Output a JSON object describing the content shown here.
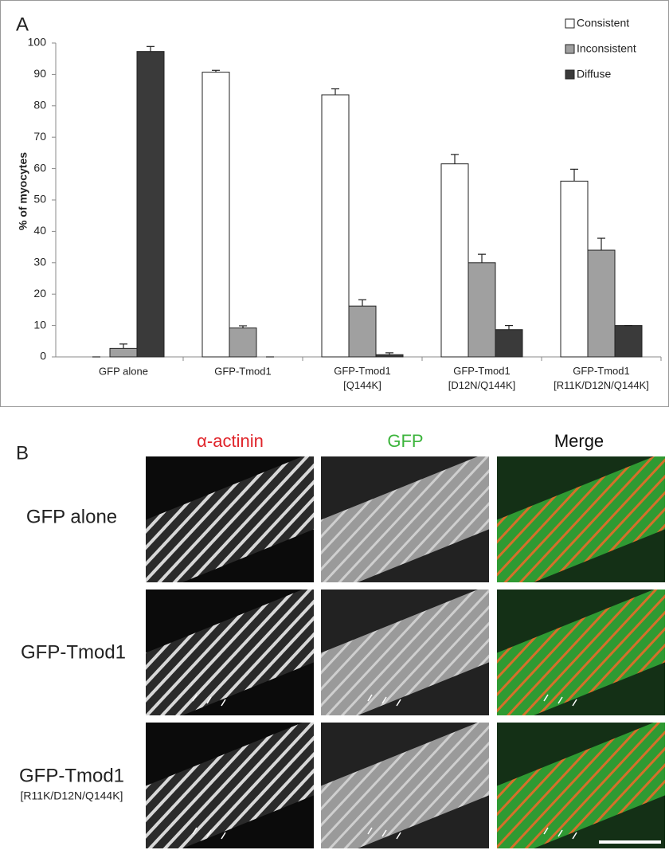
{
  "panel_a": {
    "label": "A"
  },
  "chart_data": {
    "type": "bar",
    "ylabel": "% of myocytes",
    "categories": [
      "GFP alone",
      "GFP-Tmod1",
      "GFP-Tmod1\n[Q144K]",
      "GFP-Tmod1\n[D12N/Q144K]",
      "GFP-Tmod1\n[R11K/D12N/Q144K]"
    ],
    "series": [
      {
        "name": "Consistent",
        "color": "#ffffff",
        "values": [
          0,
          90.7,
          83.5,
          61.5,
          56
        ],
        "errors": [
          0,
          0.6,
          1.9,
          3,
          3.8
        ]
      },
      {
        "name": "Inconsistent",
        "color": "#a0a0a0",
        "values": [
          2.7,
          9.2,
          16.2,
          30,
          34
        ],
        "errors": [
          1.4,
          0.7,
          2,
          2.7,
          3.8
        ]
      },
      {
        "name": "Diffuse",
        "color": "#3a3a3a",
        "values": [
          97.3,
          0,
          0.7,
          8.7,
          10
        ],
        "errors": [
          1.6,
          0,
          0.6,
          1.3,
          0
        ]
      }
    ],
    "ylim": [
      0,
      100
    ],
    "yticks": [
      0,
      10,
      20,
      30,
      40,
      50,
      60,
      70,
      80,
      90,
      100
    ],
    "grid": false,
    "legend": "upper right"
  },
  "panel_b": {
    "label": "B",
    "columns": [
      "α-actinin",
      "GFP",
      "Merge"
    ],
    "rows": [
      {
        "label": "GFP alone"
      },
      {
        "label": "GFP-Tmod1"
      },
      {
        "label": "GFP-Tmod1",
        "sublabel": "[R11K/D12N/Q144K]"
      }
    ]
  }
}
